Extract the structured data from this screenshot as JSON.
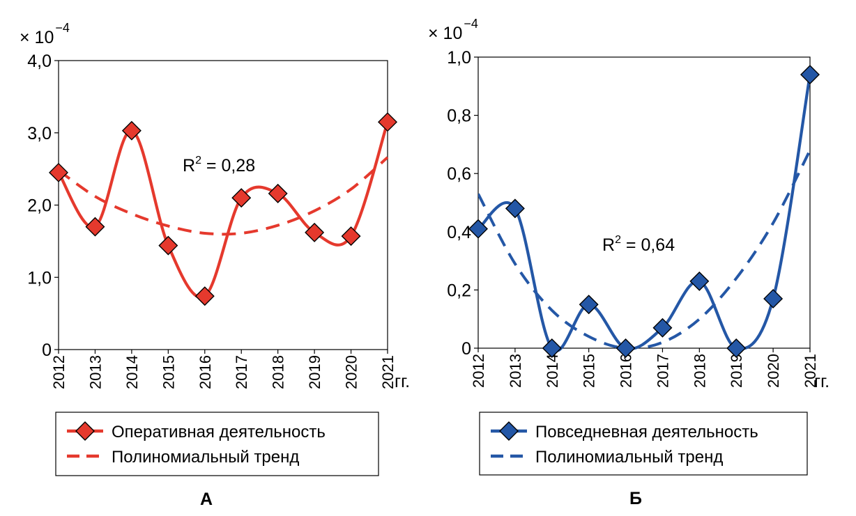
{
  "chart_data": [
    {
      "type": "line",
      "panel_label": "А",
      "y_multiplier": "× 10",
      "y_exponent": "−4",
      "x_unit": "гг.",
      "categories": [
        "2012",
        "2013",
        "2014",
        "2015",
        "2016",
        "2017",
        "2018",
        "2019",
        "2020",
        "2021"
      ],
      "ylim": [
        0,
        4
      ],
      "y_ticks": [
        "0",
        "1,0",
        "2,0",
        "3,0",
        "4,0"
      ],
      "grid": false,
      "color": "#e5392d",
      "series": [
        {
          "name": "Оперативная деятельность",
          "style": "smooth-line-diamond",
          "values": [
            2.45,
            1.7,
            3.03,
            1.44,
            0.74,
            2.1,
            2.16,
            1.62,
            1.57,
            3.15
          ]
        },
        {
          "name": "Полиномиальный тренд",
          "style": "dashed",
          "values": [
            2.48,
            2.12,
            1.88,
            1.71,
            1.61,
            1.61,
            1.72,
            1.92,
            2.22,
            2.66
          ]
        }
      ],
      "annotation": {
        "text": "R",
        "sup": "2",
        "rest": " = 0,28"
      },
      "legend_position": "bottom"
    },
    {
      "type": "line",
      "panel_label": "Б",
      "y_multiplier": "× 10",
      "y_exponent": "−4",
      "x_unit": "гг.",
      "categories": [
        "2012",
        "2013",
        "2014",
        "2015",
        "2016",
        "2017",
        "2018",
        "2019",
        "2020",
        "2021"
      ],
      "ylim": [
        0,
        1
      ],
      "y_ticks": [
        "0",
        "0,2",
        "0,4",
        "0,6",
        "0,8",
        "1,0"
      ],
      "grid": false,
      "color": "#2457a6",
      "series": [
        {
          "name": "Повседневная деятельность",
          "style": "smooth-line-diamond",
          "values": [
            0.41,
            0.48,
            0.0,
            0.15,
            0.0,
            0.07,
            0.23,
            0.0,
            0.17,
            0.94
          ]
        },
        {
          "name": "Полиномиальный тренд",
          "style": "dashed",
          "values": [
            0.53,
            0.29,
            0.13,
            0.04,
            0.0,
            0.02,
            0.1,
            0.24,
            0.43,
            0.68
          ]
        }
      ],
      "annotation": {
        "text": "R",
        "sup": "2",
        "rest": " = 0,64"
      },
      "legend_position": "bottom"
    }
  ]
}
